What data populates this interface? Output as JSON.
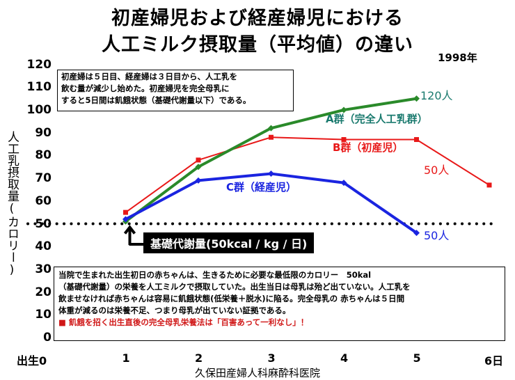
{
  "title_line1": "初産婦児および経産婦児における",
  "title_line2": "人工ミルク摂取量（平均値）の違い",
  "year": "1998年",
  "source": "久保田産婦人科麻酔科医院",
  "top_note": [
    "初産婦は５日目、経産婦は３日目から、人工乳を",
    "飲む量が減少し始めた。初産婦児を完全母乳に",
    "すると5日間は飢餓状態（基礎代謝量以下）である。"
  ],
  "bottom_note": [
    "当院で生まれた出生初日の赤ちゃんは、生きるために必要な最低限のカロリー　50kal",
    "（基礎代謝量）の栄養を人工ミルクで摂取していた。出生当日は母乳は殆ど出ていない。人工乳を",
    "飲ませなければ赤ちゃんは容易に飢餓状態(低栄養＋脱水)に陥る。完全母乳の 赤ちゃんは５日間",
    "体重が減るのは栄養不足、つまり母乳が出ていない証拠である。"
  ],
  "bottom_warning": "■ 飢餓を招く出生直後の完全母乳栄養法は「百害あって一利なし」！",
  "bmr_label": "基礎代謝量(50kcal / kg / 日)",
  "colors": {
    "groupA": "#2a8a2a",
    "groupB": "#e81818",
    "groupC": "#1a24e0",
    "labelA": "#1a7a6e"
  },
  "chart_data": {
    "type": "line",
    "title": "初産婦児および経産婦児における 人工ミルク摂取量（平均値）の違い",
    "ylabel": "人工乳摂取量(カロリー)",
    "xlabel": "",
    "x_ticks": [
      "出生0",
      "1",
      "2",
      "3",
      "4",
      "5",
      "6日"
    ],
    "ylim": [
      0,
      120
    ],
    "ytick_step": 10,
    "y_ticks": [
      "0",
      "10",
      "20",
      "30",
      "40",
      "50",
      "60",
      "70",
      "80",
      "90",
      "100",
      "110",
      "120"
    ],
    "grid": false,
    "reference_line": {
      "y": 50,
      "style": "dotted"
    },
    "series": [
      {
        "name": "A群（完全人工乳群）",
        "count_label": "120人",
        "x": [
          1,
          2,
          3,
          4,
          5
        ],
        "values": [
          51,
          75,
          92,
          100,
          105
        ]
      },
      {
        "name": "B群（初産児）",
        "count_label": "50人",
        "x": [
          1,
          2,
          3,
          4,
          5,
          6
        ],
        "values": [
          55,
          78,
          88,
          87,
          87,
          67
        ]
      },
      {
        "name": "C群（経産児）",
        "count_label": "50人",
        "x": [
          1,
          2,
          3,
          4,
          5
        ],
        "values": [
          52,
          69,
          72,
          68,
          46
        ]
      }
    ]
  }
}
